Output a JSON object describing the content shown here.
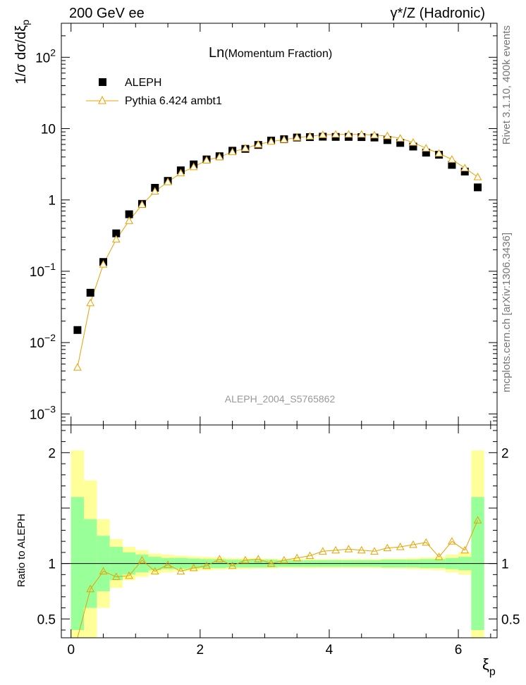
{
  "header": {
    "left": "200 GeV ee",
    "right": "γ*/Z (Hadronic)"
  },
  "side_labels": {
    "rivet": "Rivet 3.1.10,  400k events",
    "mcplots": "mcplots.cern.ch [arXiv:1306.3436]"
  },
  "chart_data": [
    {
      "type": "scatter",
      "title": "Ln(Momentum Fraction)",
      "title_main": "Ln",
      "title_sub": "(Momentum Fraction)",
      "analysis_id": "ALEPH_2004_S5765862",
      "ylabel": "1/σ dσ/dξ_p",
      "ylabel_main": "1/σ dσ/dξ",
      "ylabel_sub": "p",
      "yscale": "log",
      "ylim": [
        0.0007,
        300
      ],
      "xlim": [
        -0.15,
        6.6
      ],
      "yticks": [
        {
          "value": 100,
          "base": "10",
          "exp": "2"
        },
        {
          "value": 10,
          "base": "10",
          "exp": ""
        },
        {
          "value": 1,
          "base": "1",
          "exp": ""
        },
        {
          "value": 0.1,
          "base": "10",
          "exp": "−1"
        },
        {
          "value": 0.01,
          "base": "10",
          "exp": "−2"
        },
        {
          "value": 0.001,
          "base": "10",
          "exp": "−3"
        }
      ],
      "legend": [
        {
          "label": "ALEPH",
          "marker": "square",
          "color": "#000000"
        },
        {
          "label": "Pythia 6.424 ambt1",
          "marker": "triangle",
          "color": "#e8a200"
        }
      ],
      "x": [
        0.1,
        0.3,
        0.5,
        0.7,
        0.9,
        1.1,
        1.3,
        1.5,
        1.7,
        1.9,
        2.1,
        2.3,
        2.5,
        2.7,
        2.9,
        3.1,
        3.3,
        3.5,
        3.7,
        3.9,
        4.1,
        4.3,
        4.5,
        4.7,
        4.9,
        5.1,
        5.3,
        5.5,
        5.7,
        5.9,
        6.1,
        6.3
      ],
      "series": [
        {
          "name": "ALEPH",
          "values": [
            0.015,
            0.05,
            0.135,
            0.34,
            0.63,
            0.88,
            1.48,
            1.85,
            2.6,
            3.15,
            3.7,
            4.1,
            4.9,
            5.2,
            5.9,
            6.8,
            7.1,
            7.5,
            7.6,
            7.7,
            7.65,
            7.65,
            7.6,
            7.5,
            6.9,
            6.3,
            5.6,
            4.6,
            4.3,
            3.1,
            2.5,
            1.5
          ]
        },
        {
          "name": "Pythia 6.424 ambt1",
          "values": [
            0.0045,
            0.036,
            0.125,
            0.28,
            0.51,
            0.86,
            1.32,
            1.79,
            2.38,
            2.9,
            3.6,
            4.0,
            4.7,
            5.3,
            6.0,
            6.6,
            7.0,
            7.5,
            7.8,
            8.2,
            8.3,
            8.3,
            8.3,
            8.1,
            7.9,
            7.3,
            6.4,
            5.3,
            4.5,
            3.7,
            2.8,
            2.1
          ]
        }
      ]
    },
    {
      "type": "line",
      "ylabel": "Ratio to ALEPH",
      "xlabel": "ξ_p",
      "xlabel_main": "ξ",
      "xlabel_sub": "p",
      "ylim": [
        0.33,
        2.25
      ],
      "xlim": [
        -0.15,
        6.6
      ],
      "yticks": [
        {
          "value": 2,
          "label": "2"
        },
        {
          "value": 1,
          "label": "1"
        },
        {
          "value": 0.5,
          "label": "0.5"
        }
      ],
      "xticks": [
        {
          "value": 0,
          "label": "0"
        },
        {
          "value": 2,
          "label": "2"
        },
        {
          "value": 4,
          "label": "4"
        },
        {
          "value": 6,
          "label": "6"
        }
      ],
      "reference_line": 1,
      "bin_edges": [
        0.0,
        0.2,
        0.4,
        0.6,
        0.8,
        1.0,
        1.2,
        1.4,
        1.6,
        1.8,
        2.0,
        2.2,
        2.4,
        2.6,
        2.8,
        3.0,
        3.2,
        3.4,
        3.6,
        3.8,
        4.0,
        4.2,
        4.4,
        4.6,
        4.8,
        5.0,
        5.2,
        5.4,
        5.6,
        5.8,
        6.0,
        6.2,
        6.4
      ],
      "band_inner": [
        0.6,
        0.4,
        0.25,
        0.15,
        0.1,
        0.08,
        0.06,
        0.05,
        0.05,
        0.045,
        0.04,
        0.04,
        0.035,
        0.035,
        0.035,
        0.035,
        0.03,
        0.03,
        0.03,
        0.03,
        0.03,
        0.03,
        0.03,
        0.03,
        0.035,
        0.035,
        0.035,
        0.04,
        0.04,
        0.05,
        0.06,
        0.6
      ],
      "band_outer": [
        1.02,
        0.75,
        0.4,
        0.22,
        0.15,
        0.12,
        0.09,
        0.08,
        0.07,
        0.065,
        0.06,
        0.055,
        0.05,
        0.05,
        0.045,
        0.045,
        0.04,
        0.04,
        0.04,
        0.04,
        0.04,
        0.04,
        0.04,
        0.04,
        0.045,
        0.045,
        0.05,
        0.055,
        0.06,
        0.08,
        0.1,
        1.02
      ],
      "band_colors": {
        "inner": "#99ff99",
        "outer": "#ffff99"
      },
      "series": [
        {
          "name": "Pythia 6.424 ambt1 / ALEPH",
          "color": "#e8a200",
          "values": [
            0.3,
            0.77,
            0.93,
            0.88,
            0.89,
            1.03,
            0.93,
            0.99,
            0.93,
            0.96,
            0.98,
            1.04,
            0.98,
            1.03,
            1.04,
            1.0,
            1.03,
            1.05,
            1.07,
            1.11,
            1.12,
            1.13,
            1.12,
            1.11,
            1.14,
            1.15,
            1.17,
            1.19,
            1.06,
            1.2,
            1.12,
            1.39
          ]
        }
      ]
    }
  ]
}
